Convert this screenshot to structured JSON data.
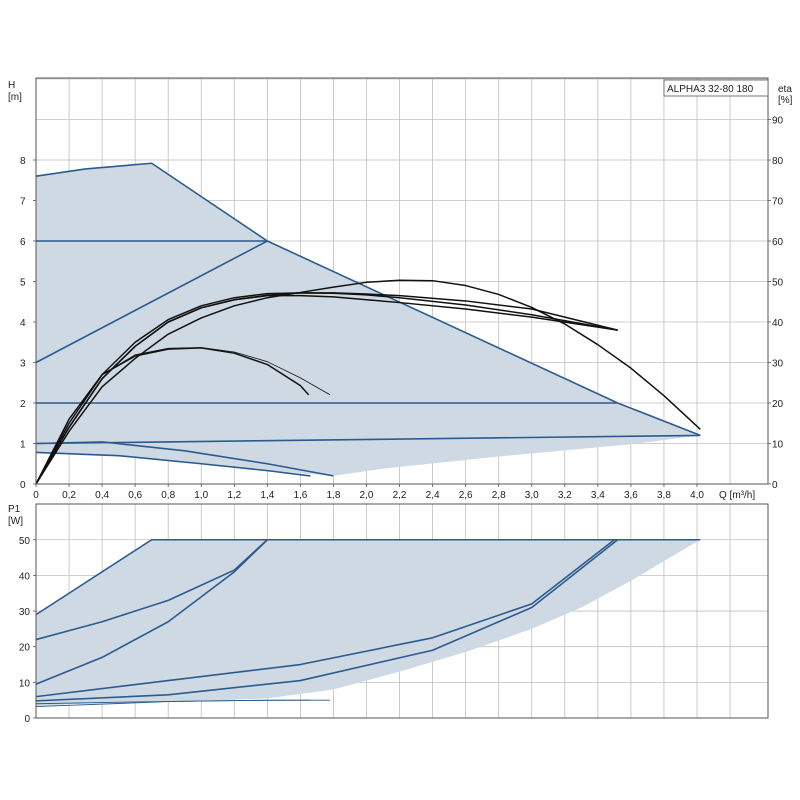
{
  "chart_data": [
    {
      "type": "line",
      "title": "ALPHA3 32-80 180",
      "xlabel": "Q [m³/h]",
      "ylabel_line1": "H",
      "ylabel_line2": "[m]",
      "y2label_line1": "eta",
      "y2label_line2": "[%]",
      "xlim": [
        0,
        4.0
      ],
      "ylim": [
        0,
        10
      ],
      "y2lim": [
        0,
        100
      ],
      "x_ticks": [
        "0",
        "0,2",
        "0,4",
        "0,6",
        "0,8",
        "1,0",
        "1,2",
        "1,4",
        "1,6",
        "1,8",
        "2,0",
        "2,2",
        "2,4",
        "2,6",
        "2,8",
        "3,0",
        "3,2",
        "3,4",
        "3,6",
        "3,8",
        "4,0"
      ],
      "y_ticks": [
        "0",
        "1",
        "2",
        "3",
        "4",
        "5",
        "6",
        "7",
        "8"
      ],
      "y2_ticks": [
        "0",
        "10",
        "20",
        "30",
        "40",
        "50",
        "60",
        "70",
        "80",
        "90"
      ],
      "grid": true,
      "colors": {
        "envelope": "#cfd9e4",
        "pump_curve": "#2b5b8e",
        "eta_curve": "#111111",
        "grid": "#bfbfbf"
      },
      "envelope": [
        [
          0,
          0
        ],
        [
          0,
          7.6
        ],
        [
          0.3,
          7.78
        ],
        [
          0.7,
          7.92
        ],
        [
          1.4,
          6.0
        ],
        [
          3.52,
          2.0
        ],
        [
          4.02,
          1.2
        ],
        [
          3.6,
          0.98
        ],
        [
          2.8,
          0.68
        ],
        [
          2.1,
          0.38
        ],
        [
          1.8,
          0.2
        ],
        [
          1.2,
          0.4
        ],
        [
          0.5,
          0.7
        ],
        [
          0,
          0.78
        ]
      ],
      "series": [
        {
          "style": "pump",
          "points": [
            [
              0,
              7.6
            ],
            [
              0.3,
              7.78
            ],
            [
              0.7,
              7.92
            ],
            [
              1.4,
              6.0
            ],
            [
              3.52,
              2.0
            ],
            [
              4.02,
              1.2
            ]
          ]
        },
        {
          "style": "pump",
          "points": [
            [
              0,
              6.0
            ],
            [
              1.4,
              6.0
            ]
          ]
        },
        {
          "style": "pump",
          "points": [
            [
              0,
              3.0
            ],
            [
              1.4,
              6.0
            ]
          ]
        },
        {
          "style": "pump",
          "points": [
            [
              0,
              2.0
            ],
            [
              3.52,
              2.0
            ]
          ]
        },
        {
          "style": "pump",
          "points": [
            [
              0,
              1.0
            ],
            [
              4.02,
              1.2
            ]
          ]
        },
        {
          "style": "pump",
          "points": [
            [
              0,
              1.0
            ],
            [
              0.4,
              1.04
            ],
            [
              0.9,
              0.82
            ],
            [
              1.4,
              0.5
            ],
            [
              1.8,
              0.2
            ]
          ]
        },
        {
          "style": "pump",
          "points": [
            [
              0,
              0.78
            ],
            [
              0.5,
              0.7
            ],
            [
              1.0,
              0.5
            ],
            [
              1.4,
              0.33
            ],
            [
              1.66,
              0.2
            ]
          ]
        },
        {
          "style": "eta",
          "points": [
            [
              0,
              0
            ],
            [
              0.2,
              13
            ],
            [
              0.4,
              24
            ],
            [
              0.6,
              31
            ],
            [
              0.8,
              37
            ],
            [
              1.0,
              41
            ],
            [
              1.2,
              44
            ],
            [
              1.4,
              46
            ],
            [
              1.6,
              47.3
            ],
            [
              1.8,
              48.6
            ],
            [
              2.0,
              49.8
            ],
            [
              2.2,
              50.3
            ],
            [
              2.4,
              50.2
            ],
            [
              2.6,
              49
            ],
            [
              2.8,
              46.8
            ],
            [
              3.0,
              43.6
            ],
            [
              3.2,
              39.5
            ],
            [
              3.4,
              34.4
            ],
            [
              3.6,
              28.6
            ],
            [
              3.8,
              21.8
            ],
            [
              4.02,
              13.5
            ]
          ]
        },
        {
          "style": "eta",
          "points": [
            [
              0,
              0
            ],
            [
              0.2,
              14
            ],
            [
              0.4,
              26
            ],
            [
              0.6,
              34
            ],
            [
              0.8,
              40
            ],
            [
              1.0,
              43.5
            ],
            [
              1.2,
              45.5
            ],
            [
              1.4,
              46.5
            ],
            [
              1.6,
              46.5
            ],
            [
              1.8,
              46.2
            ],
            [
              2.0,
              45.5
            ],
            [
              2.2,
              44.8
            ],
            [
              2.6,
              43.2
            ],
            [
              3.0,
              41.2
            ],
            [
              3.52,
              38
            ]
          ]
        },
        {
          "style": "eta",
          "points": [
            [
              0,
              0
            ],
            [
              0.2,
              14
            ],
            [
              0.4,
              26
            ],
            [
              0.6,
              34
            ],
            [
              0.8,
              40
            ],
            [
              1.0,
              43.5
            ],
            [
              1.2,
              45.5
            ],
            [
              1.4,
              46.6
            ],
            [
              1.6,
              47.2
            ],
            [
              1.8,
              47.2
            ],
            [
              2.0,
              46.9
            ],
            [
              2.2,
              46.5
            ],
            [
              2.6,
              45.2
            ],
            [
              3.0,
              43.2
            ],
            [
              3.52,
              38
            ]
          ]
        },
        {
          "style": "eta",
          "points": [
            [
              0,
              0
            ],
            [
              0.2,
              15
            ],
            [
              0.4,
              27
            ],
            [
              0.6,
              35
            ],
            [
              0.8,
              40.6
            ],
            [
              1.0,
              44
            ],
            [
              1.2,
              46
            ],
            [
              1.4,
              47
            ],
            [
              1.6,
              47.2
            ],
            [
              1.8,
              47.1
            ],
            [
              2.0,
              46.7
            ],
            [
              2.2,
              46
            ],
            [
              2.6,
              44.2
            ],
            [
              3.0,
              41.8
            ],
            [
              3.52,
              38
            ]
          ]
        },
        {
          "style": "eta",
          "points": [
            [
              0,
              0
            ],
            [
              0.2,
              16
            ],
            [
              0.4,
              27
            ],
            [
              0.6,
              31.6
            ],
            [
              0.8,
              33.3
            ],
            [
              1.0,
              33.6
            ],
            [
              1.2,
              32.3
            ],
            [
              1.4,
              29.5
            ],
            [
              1.6,
              24.3
            ],
            [
              1.65,
              22
            ]
          ]
        },
        {
          "style": "eta-thin",
          "points": [
            [
              0,
              0
            ],
            [
              0.2,
              16
            ],
            [
              0.4,
              27
            ],
            [
              0.6,
              31.9
            ],
            [
              0.8,
              33.5
            ],
            [
              1.0,
              33.7
            ],
            [
              1.2,
              32.6
            ],
            [
              1.4,
              30.2
            ],
            [
              1.6,
              26.2
            ],
            [
              1.78,
              22
            ]
          ]
        }
      ]
    },
    {
      "type": "line",
      "ylabel_line1": "P1",
      "ylabel_line2": "[W]",
      "xlim": [
        0,
        4.0
      ],
      "ylim": [
        0,
        55
      ],
      "y_ticks": [
        "0",
        "10",
        "20",
        "30",
        "40",
        "50"
      ],
      "grid": true,
      "colors": {
        "envelope": "#cfd9e4",
        "curve": "#2b5b8e"
      },
      "envelope": [
        [
          0,
          3
        ],
        [
          0,
          29
        ],
        [
          0.7,
          50
        ],
        [
          4.02,
          50
        ],
        [
          3.8,
          44
        ],
        [
          3.6,
          38.5
        ],
        [
          3.3,
          31
        ],
        [
          3.0,
          25
        ],
        [
          2.6,
          18.5
        ],
        [
          2.2,
          13
        ],
        [
          1.8,
          8
        ],
        [
          1.4,
          5.5
        ],
        [
          1.0,
          4.8
        ],
        [
          0.6,
          4.4
        ],
        [
          0.2,
          3.9
        ]
      ],
      "series": [
        {
          "points": [
            [
              0,
              29
            ],
            [
              0.7,
              50
            ],
            [
              4.02,
              50
            ]
          ]
        },
        {
          "points": [
            [
              0,
              22
            ],
            [
              0.4,
              27
            ],
            [
              0.8,
              33
            ],
            [
              1.2,
              41.5
            ],
            [
              1.4,
              50
            ]
          ]
        },
        {
          "points": [
            [
              0,
              9.5
            ],
            [
              0.4,
              17
            ],
            [
              0.8,
              27
            ],
            [
              1.2,
              41
            ],
            [
              1.4,
              50
            ]
          ]
        },
        {
          "points": [
            [
              0,
              6
            ],
            [
              0.8,
              10.5
            ],
            [
              1.6,
              15
            ],
            [
              2.4,
              22.5
            ],
            [
              3.0,
              32
            ],
            [
              3.5,
              50
            ]
          ]
        },
        {
          "points": [
            [
              0,
              4.8
            ],
            [
              0.8,
              6.5
            ],
            [
              1.6,
              10.5
            ],
            [
              2.4,
              19
            ],
            [
              3.0,
              31
            ],
            [
              3.52,
              50
            ]
          ]
        },
        {
          "points": [
            [
              0,
              4
            ],
            [
              0.6,
              4.5
            ],
            [
              1.2,
              4.9
            ],
            [
              1.66,
              5
            ]
          ]
        },
        {
          "points": [
            [
              0,
              3.2
            ],
            [
              0.8,
              4.6
            ],
            [
              1.4,
              5
            ],
            [
              1.78,
              5
            ]
          ]
        }
      ]
    }
  ]
}
